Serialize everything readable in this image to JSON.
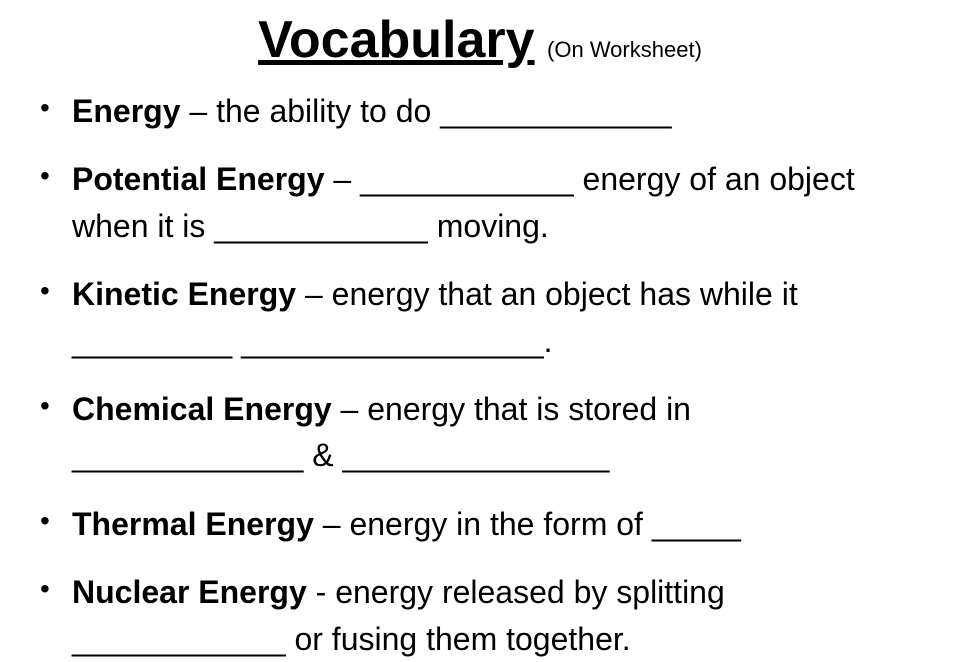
{
  "title": "Vocabulary",
  "subtitle": "(On Worksheet)",
  "items": [
    {
      "term": "Energy",
      "def": " – the ability to do _____________"
    },
    {
      "term": "Potential Energy",
      "def": " – ____________ energy of an object when it is ____________ moving."
    },
    {
      "term": "Kinetic Energy",
      "def": " – energy that an object has while it _________   _________________."
    },
    {
      "term": "Chemical Energy",
      "def": " – energy that is stored in _____________ & _______________"
    },
    {
      "term": "Thermal Energy",
      "def": " – energy in the form of _____"
    },
    {
      "term": "Nuclear Energy",
      "def": "  - energy released by splitting ____________ or fusing them together."
    }
  ],
  "colors": {
    "background": "#ffffff",
    "text": "#000000"
  },
  "typography": {
    "title_fontsize": 52,
    "subtitle_fontsize": 22,
    "body_fontsize": 32,
    "font_family": "Comic Sans MS"
  }
}
